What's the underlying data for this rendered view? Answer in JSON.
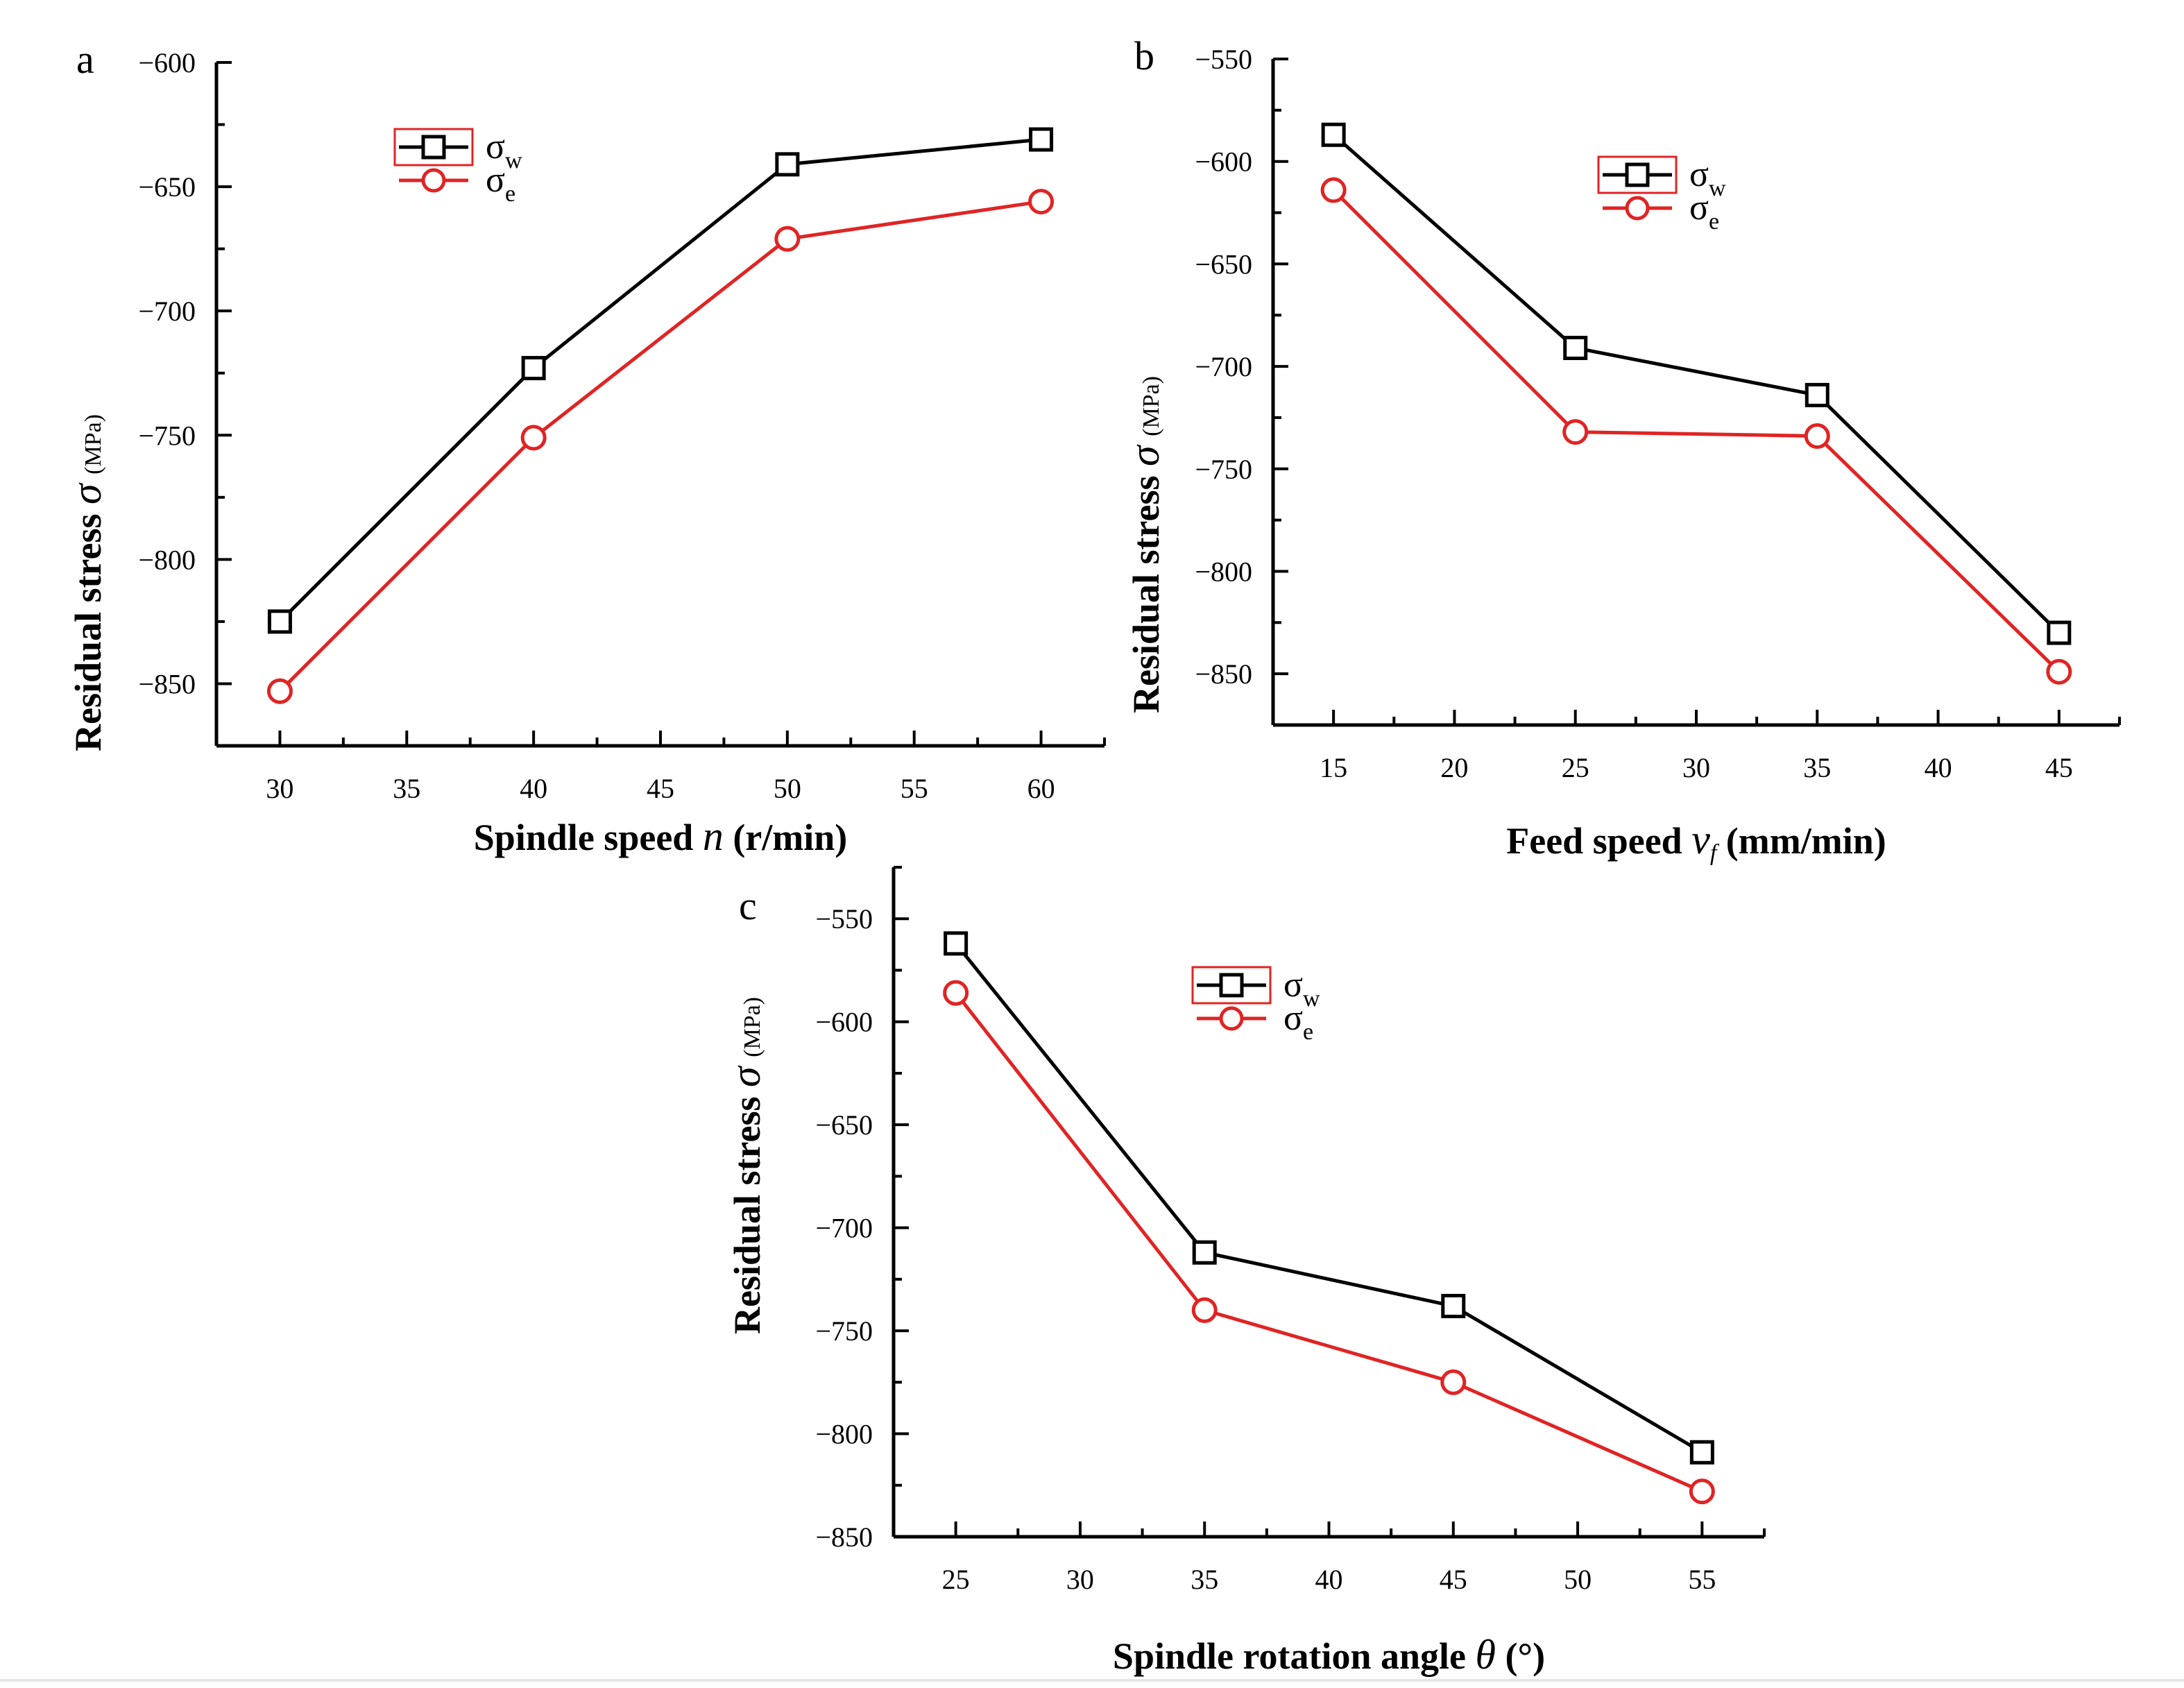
{
  "colors": {
    "sigma_w": "#000000",
    "sigma_e": "#e02424",
    "axis": "#000000"
  },
  "chart_data": [
    {
      "panel": "a",
      "type": "line",
      "xlabel_main": "Spindle speed",
      "xlabel_symbol": "n",
      "xlabel_unit": "(r/min)",
      "ylabel_main": "Residual stress",
      "ylabel_symbol": "σ",
      "ylabel_unit": "(MPa)",
      "xlim": [
        27.5,
        62.5
      ],
      "ylim": [
        -875,
        -600
      ],
      "xticks": [
        30,
        35,
        40,
        45,
        50,
        55,
        60
      ],
      "yticks": [
        -600,
        -650,
        -700,
        -750,
        -800,
        -850
      ],
      "tick_prefix": "−",
      "x": [
        30,
        40,
        50,
        60
      ],
      "series": [
        {
          "key": "w",
          "name": "σ",
          "sub": "w",
          "marker": "square",
          "values": [
            -825,
            -723,
            -641,
            -631
          ]
        },
        {
          "key": "e",
          "name": "σ",
          "sub": "e",
          "marker": "circle",
          "values": [
            -853,
            -751,
            -671,
            -656
          ]
        }
      ]
    },
    {
      "panel": "b",
      "type": "line",
      "xlabel_main": "Feed speed",
      "xlabel_symbol": "v",
      "xlabel_sub": "f",
      "xlabel_unit": "(mm/min)",
      "ylabel_main": "Residual stress",
      "ylabel_symbol": "σ",
      "ylabel_unit": "(MPa)",
      "xlim": [
        12.5,
        47.5
      ],
      "ylim": [
        -875,
        -550
      ],
      "xticks": [
        15,
        20,
        25,
        30,
        35,
        40,
        45
      ],
      "yticks": [
        -550,
        -600,
        -650,
        -700,
        -750,
        -800,
        -850
      ],
      "tick_prefix": "−",
      "x": [
        15,
        25,
        35,
        45
      ],
      "series": [
        {
          "key": "w",
          "name": "σ",
          "sub": "w",
          "marker": "square",
          "values": [
            -587,
            -691,
            -714,
            -830
          ]
        },
        {
          "key": "e",
          "name": "σ",
          "sub": "e",
          "marker": "circle",
          "values": [
            -614,
            -732,
            -734,
            -849
          ]
        }
      ]
    },
    {
      "panel": "c",
      "type": "line",
      "xlabel_main": "Spindle rotation angle",
      "xlabel_symbol": "θ",
      "xlabel_unit": "(°)",
      "ylabel_main": "Residual stress",
      "ylabel_symbol": "σ",
      "ylabel_unit": "(MPa)",
      "xlim": [
        22.5,
        57.5
      ],
      "ylim": [
        -850,
        -525
      ],
      "xticks": [
        25,
        30,
        35,
        40,
        45,
        50,
        55
      ],
      "yticks": [
        -550,
        -600,
        -650,
        -700,
        -750,
        -800,
        -850
      ],
      "tick_prefix": "−",
      "x": [
        25,
        35,
        45,
        55
      ],
      "series": [
        {
          "key": "w",
          "name": "σ",
          "sub": "w",
          "marker": "square",
          "values": [
            -562,
            -712,
            -738,
            -809
          ]
        },
        {
          "key": "e",
          "name": "σ",
          "sub": "e",
          "marker": "circle",
          "values": [
            -586,
            -740,
            -775,
            -828
          ]
        }
      ]
    }
  ]
}
